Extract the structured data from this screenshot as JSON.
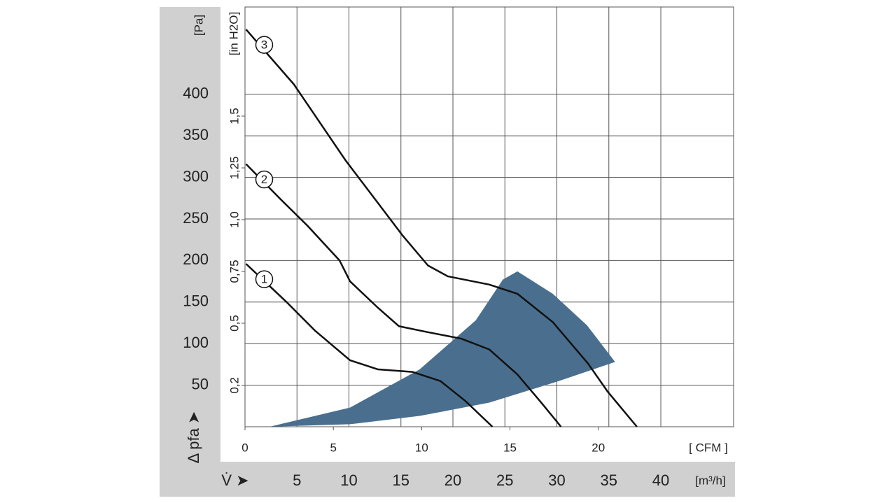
{
  "chart_data": {
    "type": "line",
    "x_label": "V̇ ➤",
    "x_unit": "[m³/h]",
    "y_label": "Δ pfa ➤",
    "y_unit": "[Pa]",
    "x2_unit": "[ CFM ]",
    "y2_unit": "[in H2O]",
    "xlim": [
      0,
      47
    ],
    "xticks": [
      5,
      10,
      15,
      20,
      25,
      30,
      35,
      40
    ],
    "ylim": [
      0,
      505
    ],
    "yticks": [
      50,
      100,
      150,
      200,
      250,
      300,
      350,
      400
    ],
    "x2lim": [
      0,
      27.66
    ],
    "x2ticks": [
      0,
      5,
      10,
      15,
      20
    ],
    "y2lim": [
      0,
      2.027
    ],
    "y2ticks": [
      {
        "value": 0.2,
        "label": "0,2"
      },
      {
        "value": 0.5,
        "label": "0,5"
      },
      {
        "value": 0.75,
        "label": "0,75"
      },
      {
        "value": 1.0,
        "label": "1,0"
      },
      {
        "value": 1.25,
        "label": "1,25"
      },
      {
        "value": 1.5,
        "label": "1,5"
      }
    ],
    "grid": true,
    "series": [
      {
        "name": "1",
        "color": "#111111",
        "x": [
          0.1,
          4,
          6.7,
          10.1,
          12.8,
          16.1,
          18.8,
          21.2,
          23.8
        ],
        "values": [
          196,
          150,
          116,
          80,
          69,
          66,
          55,
          31,
          0
        ]
      },
      {
        "name": "2",
        "color": "#111111",
        "x": [
          0.1,
          3.4,
          6,
          9.1,
          10.1,
          12.8,
          14.8,
          17.5,
          20.8,
          23.5,
          26.2,
          28.5,
          30.4
        ],
        "values": [
          316,
          274,
          242,
          200,
          175,
          143,
          121,
          114,
          106,
          93,
          63,
          29,
          0
        ]
      },
      {
        "name": "3",
        "color": "#111111",
        "x": [
          0.1,
          4.7,
          9.7,
          12.8,
          15.1,
          17.6,
          19.5,
          23.5,
          26.2,
          29.6,
          33,
          34.9,
          37.7
        ],
        "values": [
          478,
          412,
          320,
          269,
          231,
          194,
          181,
          171,
          160,
          126,
          76,
          42,
          0
        ]
      }
    ],
    "region": {
      "color": "#4a6f8e",
      "x": [
        2.35,
        10.1,
        16.8,
        22.2,
        24.8,
        26.2,
        29.6,
        32.9,
        35.6,
        30.2,
        23.5,
        16.8,
        10.1
      ],
      "values": [
        0,
        23,
        69,
        128,
        177,
        187,
        160,
        122,
        78,
        55,
        29,
        13,
        3
      ]
    }
  }
}
